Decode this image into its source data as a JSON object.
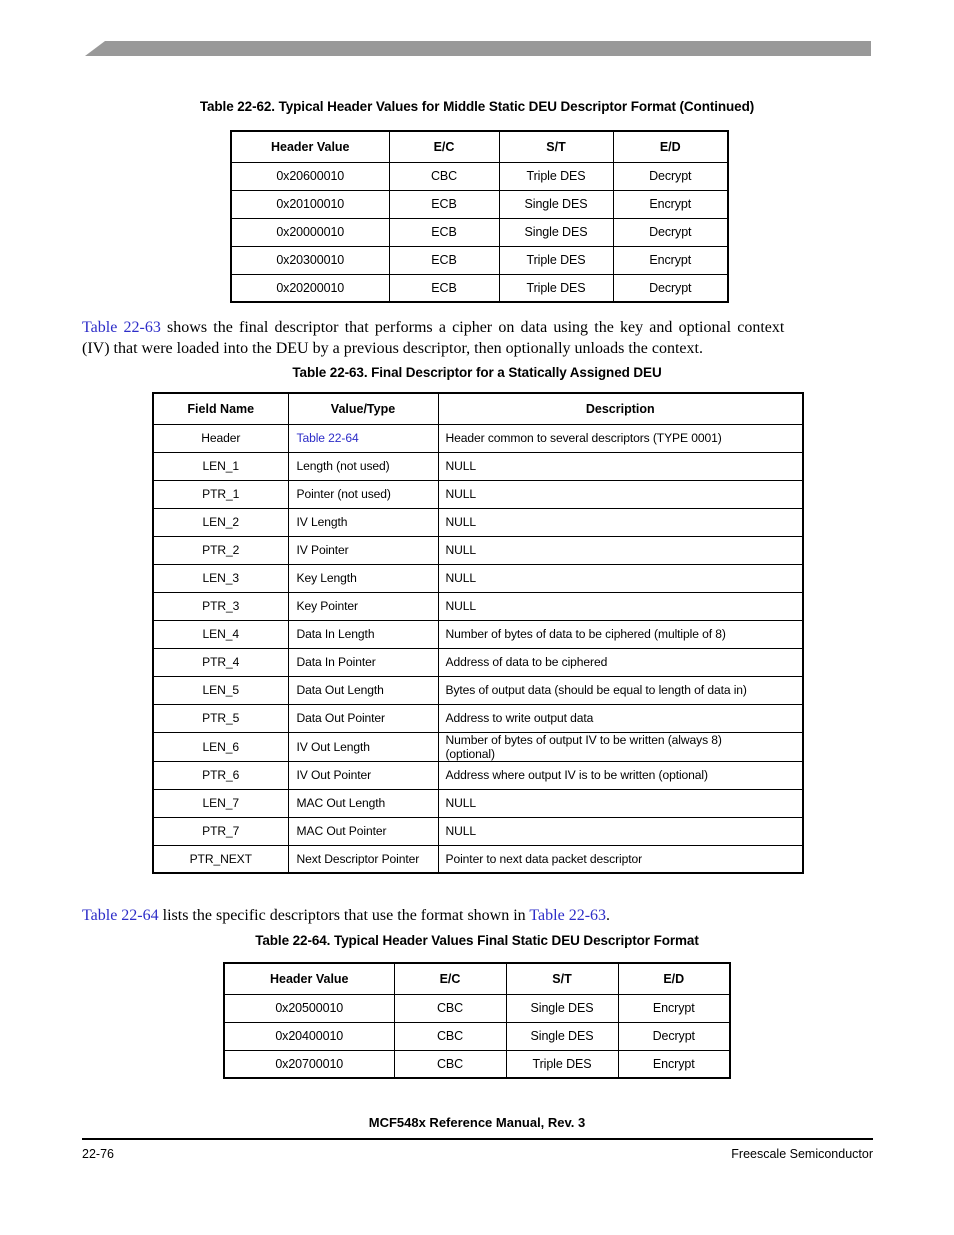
{
  "banner_color": "#999999",
  "link_color": "#2d2dc8",
  "table62": {
    "caption": "Table 22-62. Typical Header Values for Middle Static DEU Descriptor Format (Continued)",
    "headers": [
      "Header Value",
      "E/C",
      "S/T",
      "E/D"
    ],
    "rows": [
      [
        "0x20600010",
        "CBC",
        "Triple DES",
        "Decrypt"
      ],
      [
        "0x20100010",
        "ECB",
        "Single DES",
        "Encrypt"
      ],
      [
        "0x20000010",
        "ECB",
        "Single DES",
        "Decrypt"
      ],
      [
        "0x20300010",
        "ECB",
        "Triple DES",
        "Encrypt"
      ],
      [
        "0x20200010",
        "ECB",
        "Triple DES",
        "Decrypt"
      ]
    ]
  },
  "para1": {
    "link": "Table 22-63",
    "after_link_line1": " shows the final descriptor that performs a cipher on data using the key and optional context",
    "line2": "(IV) that were loaded into the DEU by a previous descriptor, then optionally unloads the context."
  },
  "table63": {
    "caption": "Table 22-63. Final Descriptor for a Statically Assigned DEU",
    "headers": [
      "Field Name",
      "Value/Type",
      "Description"
    ],
    "rows": [
      [
        {
          "t": "Header"
        },
        {
          "t": "Table 22-64",
          "link": true
        },
        {
          "t": "Header common to several descriptors (TYPE 0001)"
        }
      ],
      [
        {
          "t": "LEN_1"
        },
        {
          "t": "Length (not used)"
        },
        {
          "t": "NULL"
        }
      ],
      [
        {
          "t": "PTR_1"
        },
        {
          "t": "Pointer (not used)"
        },
        {
          "t": "NULL"
        }
      ],
      [
        {
          "t": "LEN_2"
        },
        {
          "t": "IV Length"
        },
        {
          "t": "NULL"
        }
      ],
      [
        {
          "t": "PTR_2"
        },
        {
          "t": "IV Pointer"
        },
        {
          "t": "NULL"
        }
      ],
      [
        {
          "t": "LEN_3"
        },
        {
          "t": "Key Length"
        },
        {
          "t": "NULL"
        }
      ],
      [
        {
          "t": "PTR_3"
        },
        {
          "t": "Key Pointer"
        },
        {
          "t": "NULL"
        }
      ],
      [
        {
          "t": "LEN_4"
        },
        {
          "t": "Data In Length"
        },
        {
          "t": "Number of bytes of data to be ciphered (multiple of 8)"
        }
      ],
      [
        {
          "t": "PTR_4"
        },
        {
          "t": "Data In Pointer"
        },
        {
          "t": "Address of data to be ciphered"
        }
      ],
      [
        {
          "t": "LEN_5"
        },
        {
          "t": "Data Out Length"
        },
        {
          "t": "Bytes of output data (should be equal to length of data in)"
        }
      ],
      [
        {
          "t": "PTR_5"
        },
        {
          "t": "Data Out Pointer"
        },
        {
          "t": "Address to write output data"
        }
      ],
      [
        {
          "t": "LEN_6"
        },
        {
          "t": "IV Out Length"
        },
        {
          "t": "Number of bytes of output IV to be written (always 8)\n(optional)"
        }
      ],
      [
        {
          "t": "PTR_6"
        },
        {
          "t": "IV Out Pointer"
        },
        {
          "t": "Address where output IV is to be written (optional)"
        }
      ],
      [
        {
          "t": "LEN_7"
        },
        {
          "t": "MAC Out Length"
        },
        {
          "t": "NULL"
        }
      ],
      [
        {
          "t": "PTR_7"
        },
        {
          "t": "MAC Out Pointer"
        },
        {
          "t": "NULL"
        }
      ],
      [
        {
          "t": "PTR_NEXT"
        },
        {
          "t": "Next Descriptor Pointer"
        },
        {
          "t": "Pointer to next data packet descriptor"
        }
      ]
    ]
  },
  "para2": {
    "link1": "Table 22-64",
    "middle": " lists the specific descriptors that use the format shown in ",
    "link2": "Table 22-63",
    "end": "."
  },
  "table64": {
    "caption": "Table 22-64. Typical Header Values Final Static DEU Descriptor Format",
    "headers": [
      "Header Value",
      "E/C",
      "S/T",
      "E/D"
    ],
    "rows": [
      [
        "0x20500010",
        "CBC",
        "Single DES",
        "Encrypt"
      ],
      [
        "0x20400010",
        "CBC",
        "Single DES",
        "Decrypt"
      ],
      [
        "0x20700010",
        "CBC",
        "Triple DES",
        "Encrypt"
      ]
    ]
  },
  "footer": {
    "manual": "MCF548x Reference Manual, Rev. 3",
    "page_number": "22-76",
    "company": "Freescale Semiconductor"
  }
}
